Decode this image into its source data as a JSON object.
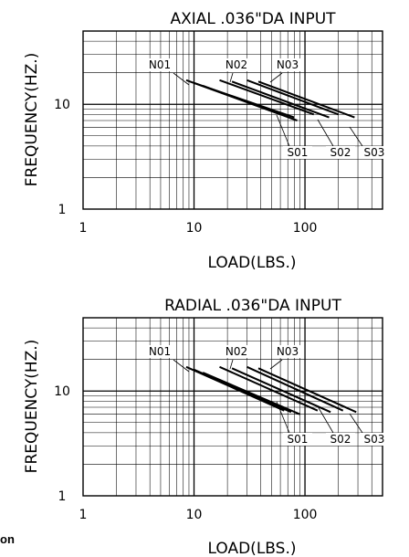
{
  "chart_data": [
    {
      "type": "line",
      "title": "AXIAL .036\"DA INPUT",
      "xlabel": "LOAD(LBS.)",
      "ylabel": "FREQUENCY(HZ.)",
      "xscale": "log",
      "yscale": "log",
      "xlim": [
        1,
        500
      ],
      "ylim": [
        1,
        50
      ],
      "xticks": [
        "1",
        "10",
        "100"
      ],
      "yticks": [
        "1",
        "10"
      ],
      "grid": true,
      "series": [
        {
          "x": [
            8.5,
            60
          ],
          "y": [
            17,
            8
          ]
        },
        {
          "x": [
            10,
            80
          ],
          "y": [
            16,
            7.5
          ]
        },
        {
          "x": [
            12,
            85
          ],
          "y": [
            15,
            7
          ]
        },
        {
          "x": [
            17,
            120
          ],
          "y": [
            17,
            8
          ]
        },
        {
          "x": [
            22,
            165
          ],
          "y": [
            16.5,
            7.5
          ]
        },
        {
          "x": [
            30,
            200
          ],
          "y": [
            17,
            8
          ]
        },
        {
          "x": [
            38,
            280
          ],
          "y": [
            16.5,
            7.5
          ]
        }
      ],
      "annotations": [
        "N01",
        "N02",
        "N03",
        "S01",
        "S02",
        "S03"
      ]
    },
    {
      "type": "line",
      "title": "RADIAL .036\"DA INPUT",
      "xlabel": "LOAD(LBS.)",
      "ylabel": "FREQUENCY(HZ.)",
      "xscale": "log",
      "yscale": "log",
      "xlim": [
        1,
        500
      ],
      "ylim": [
        1,
        50
      ],
      "xticks": [
        "1",
        "10",
        "100"
      ],
      "yticks": [
        "1",
        "10"
      ],
      "grid": true,
      "series": [
        {
          "x": [
            8.5,
            65
          ],
          "y": [
            17,
            6.5
          ]
        },
        {
          "x": [
            10,
            75
          ],
          "y": [
            16,
            6.3
          ]
        },
        {
          "x": [
            12,
            90
          ],
          "y": [
            15,
            6
          ]
        },
        {
          "x": [
            17,
            130
          ],
          "y": [
            17,
            6.5
          ]
        },
        {
          "x": [
            22,
            170
          ],
          "y": [
            16.5,
            6.3
          ]
        },
        {
          "x": [
            30,
            220
          ],
          "y": [
            17,
            6.5
          ]
        },
        {
          "x": [
            38,
            290
          ],
          "y": [
            16.5,
            6.3
          ]
        }
      ],
      "annotations": [
        "N01",
        "N02",
        "N03",
        "S01",
        "S02",
        "S03"
      ]
    }
  ],
  "page": {
    "fragment_text": "on"
  }
}
